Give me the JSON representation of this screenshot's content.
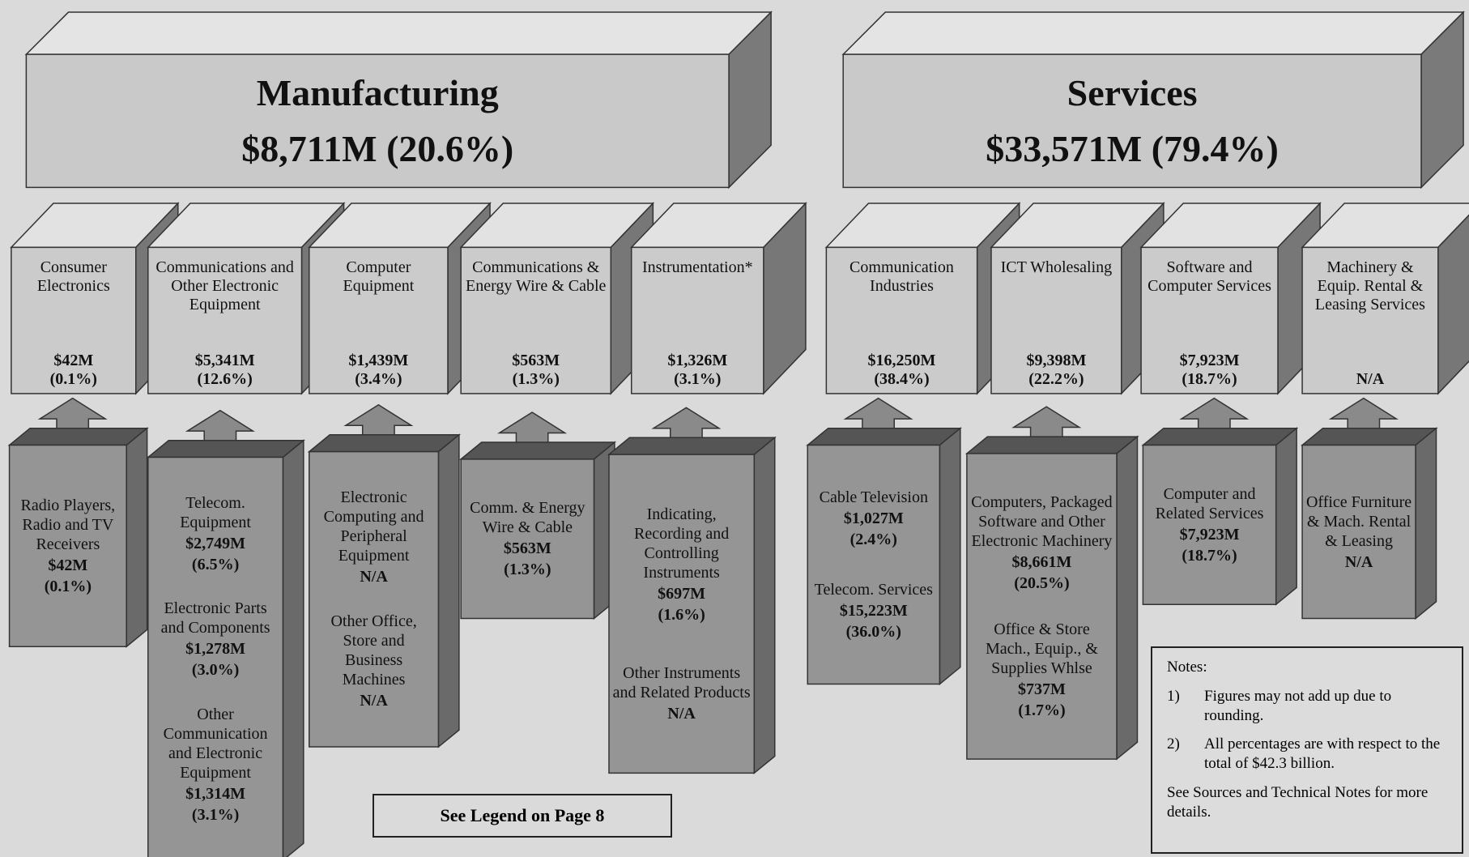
{
  "manufacturing": {
    "title": "Manufacturing",
    "value": "$8,711M (20.6%)"
  },
  "services": {
    "title": "Services",
    "value": "$33,571M (79.4%)"
  },
  "sectors": [
    {
      "name": "Consumer Electronics",
      "value": "$42M",
      "share": "(0.1%)",
      "items": [
        {
          "name": "Radio Players, Radio and TV Receivers",
          "value": "$42M",
          "share": "(0.1%)"
        }
      ]
    },
    {
      "name": "Communications and Other Electronic Equipment",
      "value": "$5,341M",
      "share": "(12.6%)",
      "items": [
        {
          "name": "Telecom. Equipment",
          "value": "$2,749M",
          "share": "(6.5%)"
        },
        {
          "name": "Electronic Parts and Components",
          "value": "$1,278M",
          "share": "(3.0%)"
        },
        {
          "name": "Other Communication and Electronic Equipment",
          "value": "$1,314M",
          "share": "(3.1%)"
        }
      ]
    },
    {
      "name": "Computer Equipment",
      "value": "$1,439M",
      "share": "(3.4%)",
      "items": [
        {
          "name": "Electronic Computing and Peripheral Equipment",
          "value": "N/A"
        },
        {
          "name": "Other Office, Store and Business Machines",
          "value": "N/A"
        }
      ]
    },
    {
      "name": "Communications & Energy Wire & Cable",
      "value": "$563M",
      "share": "(1.3%)",
      "items": [
        {
          "name": "Comm. & Energy Wire & Cable",
          "value": "$563M",
          "share": "(1.3%)"
        }
      ]
    },
    {
      "name": "Instrumentation*",
      "value": "$1,326M",
      "share": "(3.1%)",
      "items": [
        {
          "name": "Indicating, Recording and Controlling Instruments",
          "value": "$697M",
          "share": "(1.6%)"
        },
        {
          "name": "Other Instruments and Related Products",
          "value": "N/A"
        }
      ]
    },
    {
      "name": "Communication Industries",
      "value": "$16,250M",
      "share": "(38.4%)",
      "items": [
        {
          "name": "Cable Television",
          "value": "$1,027M",
          "share": "(2.4%)"
        },
        {
          "name": "Telecom. Services",
          "value": "$15,223M",
          "share": "(36.0%)"
        }
      ]
    },
    {
      "name": "ICT Wholesaling",
      "value": "$9,398M",
      "share": "(22.2%)",
      "items": [
        {
          "name": "Computers, Packaged Software and Other Electronic Machinery",
          "value": "$8,661M",
          "share": "(20.5%)"
        },
        {
          "name": "Office & Store Mach., Equip., & Supplies Whlse",
          "value": "$737M",
          "share": "(1.7%)"
        }
      ]
    },
    {
      "name": "Software and Computer Services",
      "value": "$7,923M",
      "share": "(18.7%)",
      "items": [
        {
          "name": "Computer and Related Services",
          "value": "$7,923M",
          "share": "(18.7%)"
        }
      ]
    },
    {
      "name": "Machinery & Equip. Rental & Leasing Services",
      "value": "N/A",
      "items": [
        {
          "name": "Office Furniture & Mach. Rental & Leasing",
          "value": "N/A"
        }
      ]
    }
  ],
  "notes": {
    "heading": "Notes:",
    "items": [
      {
        "marker": "1)",
        "text": "Figures may not add up due to rounding."
      },
      {
        "marker": "2)",
        "text": "All percentages are with respect to the total of $42.3 billion."
      }
    ],
    "footer": "See Sources and Technical Notes for more details."
  },
  "legend_link": "See Legend on Page 8"
}
